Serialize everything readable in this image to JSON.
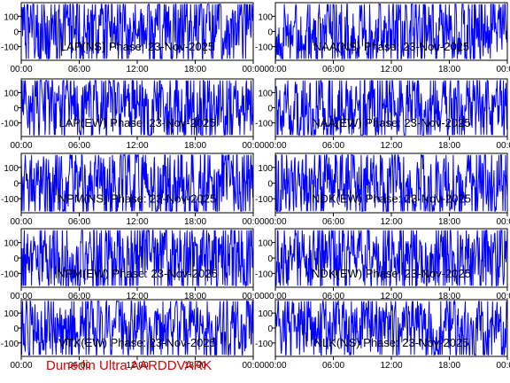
{
  "footer": "Dunedin Ultra AARDDVARK",
  "colors": {
    "trace": "#0000ff",
    "axis": "#000000",
    "footer": "#e00000"
  },
  "chart_data": [
    {
      "type": "line",
      "title": "LAP(NS) Phase: 23-Nov-2025",
      "x_ticks": [
        "00:00",
        "06:00",
        "12:00",
        "18:00",
        "00:00"
      ],
      "y_ticks": [
        "100",
        "0",
        "-100"
      ],
      "ylim": [
        -190,
        190
      ],
      "series": [
        {
          "values": [],
          "amplitude": 0.95,
          "period": 2
        }
      ]
    },
    {
      "type": "line",
      "title": "NAA(NS) Phase: 23-Nov-2025",
      "x_ticks": [
        "00:00",
        "06:00",
        "12:00",
        "18:00",
        "00:00"
      ],
      "y_ticks": [
        "100",
        "0",
        "-100"
      ],
      "ylim": [
        -190,
        190
      ],
      "series": [
        {
          "values": [],
          "amplitude": 0.95,
          "period": 2
        }
      ]
    },
    {
      "type": "line",
      "title": "LAP(EW) Phase: 23-Nov-2025",
      "x_ticks": [
        "00:00",
        "06:00",
        "12:00",
        "18:00",
        "00:00"
      ],
      "y_ticks": [
        "100",
        "0",
        "-100"
      ],
      "ylim": [
        -190,
        190
      ],
      "series": [
        {
          "values": [],
          "amplitude": 0.95,
          "period": 3
        }
      ]
    },
    {
      "type": "line",
      "title": "NAA(EW) Phase: 23-Nov-2025",
      "x_ticks": [
        "00:00",
        "06:00",
        "12:00",
        "18:00",
        "00:00"
      ],
      "y_ticks": [
        "100",
        "0",
        "-100"
      ],
      "ylim": [
        -190,
        190
      ],
      "series": [
        {
          "values": [],
          "amplitude": 0.9,
          "period": 3
        }
      ]
    },
    {
      "type": "line",
      "title": "NPM(NS) Phase: 23-Nov-2025",
      "x_ticks": [
        "00:00",
        "06:00",
        "12:00",
        "18:00",
        "00:00"
      ],
      "y_ticks": [
        "100",
        "0",
        "-100"
      ],
      "ylim": [
        -190,
        190
      ],
      "series": [
        {
          "values": [],
          "amplitude": 0.95,
          "period": 2
        }
      ]
    },
    {
      "type": "line",
      "title": "NDK(EW) Phase: 23-Nov-2025",
      "x_ticks": [
        "00:00",
        "06:00",
        "12:00",
        "18:00",
        "00:00"
      ],
      "y_ticks": [
        "100",
        "0",
        "-100"
      ],
      "ylim": [
        -190,
        190
      ],
      "series": [
        {
          "values": [],
          "amplitude": 0.9,
          "period": 3
        }
      ]
    },
    {
      "type": "line",
      "title": "NPM(EW) Phase: 23-Nov-2025",
      "x_ticks": [
        "00:00",
        "06:00",
        "12:00",
        "18:00",
        "00:00"
      ],
      "y_ticks": [
        "100",
        "0",
        "-100"
      ],
      "ylim": [
        -190,
        190
      ],
      "series": [
        {
          "values": [],
          "amplitude": 0.95,
          "period": 2
        }
      ]
    },
    {
      "type": "line",
      "title": "NDK(EW) Phase: 23-Nov-2025",
      "x_ticks": [
        "00:00",
        "06:00",
        "12:00",
        "18:00",
        "00:00"
      ],
      "y_ticks": [
        "100",
        "0",
        "-100"
      ],
      "ylim": [
        -190,
        190
      ],
      "series": [
        {
          "values": [],
          "amplitude": 0.9,
          "period": 3
        }
      ]
    },
    {
      "type": "line",
      "title": "VTX(EW) Phase: 23-Nov-2025",
      "x_ticks": [
        "00:00",
        "06:00",
        "12:00",
        "18:00",
        "00:00"
      ],
      "y_ticks": [
        "100",
        "0",
        "-100"
      ],
      "ylim": [
        -190,
        190
      ],
      "series": [
        {
          "values": [],
          "amplitude": 0.85,
          "period": 3
        }
      ]
    },
    {
      "type": "line",
      "title": "NLK(NS) Phase: 23-Nov-2025",
      "x_ticks": [
        "00:00",
        "06:00",
        "12:00",
        "18:00",
        "00:00"
      ],
      "y_ticks": [
        "100",
        "0",
        "-100"
      ],
      "ylim": [
        -190,
        190
      ],
      "series": [
        {
          "values": [],
          "amplitude": 0.85,
          "period": 3
        }
      ]
    }
  ]
}
